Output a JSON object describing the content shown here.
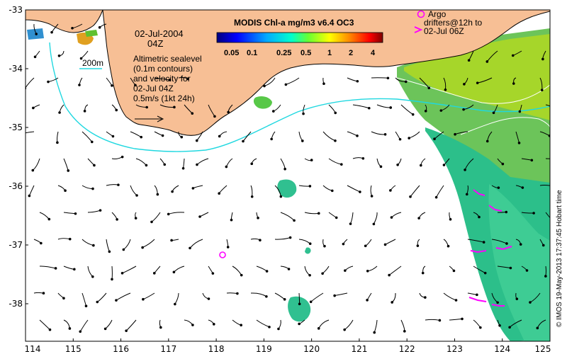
{
  "map": {
    "date_label": "02-Jul-2004",
    "time_label": "04Z",
    "isobath_label": "200m",
    "altimetry_lines": [
      "Altimetric sealevel",
      "(0.1m contours)",
      "and velocity for",
      "02-Jul 04Z",
      "0.5m/s (1kt 24h)"
    ],
    "colorbar_title": "MODIS Chl-a mg/m3 v6.4 OC3",
    "colorbar_ticks": [
      "0.05",
      "0.1",
      "0.25",
      "0.5",
      "1",
      "2",
      "4"
    ],
    "argo_lines": [
      "Argo",
      "drifters@12h to",
      "02-Jul 06Z"
    ],
    "credit": "© IMOS 19-May-2013 17:37:45 Hobart time",
    "x_ticks": [
      "114",
      "115",
      "116",
      "117",
      "118",
      "119",
      "120",
      "121",
      "122",
      "123",
      "124",
      "125"
    ],
    "y_ticks": [
      "-33",
      "-34",
      "-35",
      "-36",
      "-37",
      "-38"
    ],
    "colors": {
      "land": "#f7bf95",
      "isobath": "#20d8e0",
      "argo": "#ff00ff",
      "arrows": "#000000",
      "chl_low": "#20b080",
      "chl_mid": "#60d060",
      "chl_high": "#b8e020"
    }
  }
}
